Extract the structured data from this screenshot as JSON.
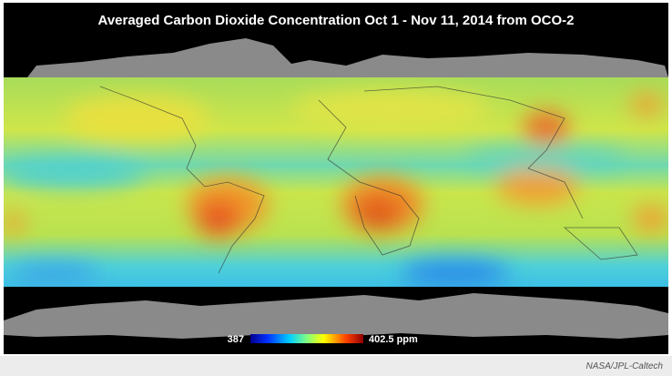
{
  "title": "Averaged Carbon Dioxide Concentration  Oct 1 - Nov 11, 2014  from OCO-2",
  "colorbar": {
    "min_label": "387",
    "max_label": "402.5 ppm"
  },
  "credit": "NASA/JPL-Caltech"
}
